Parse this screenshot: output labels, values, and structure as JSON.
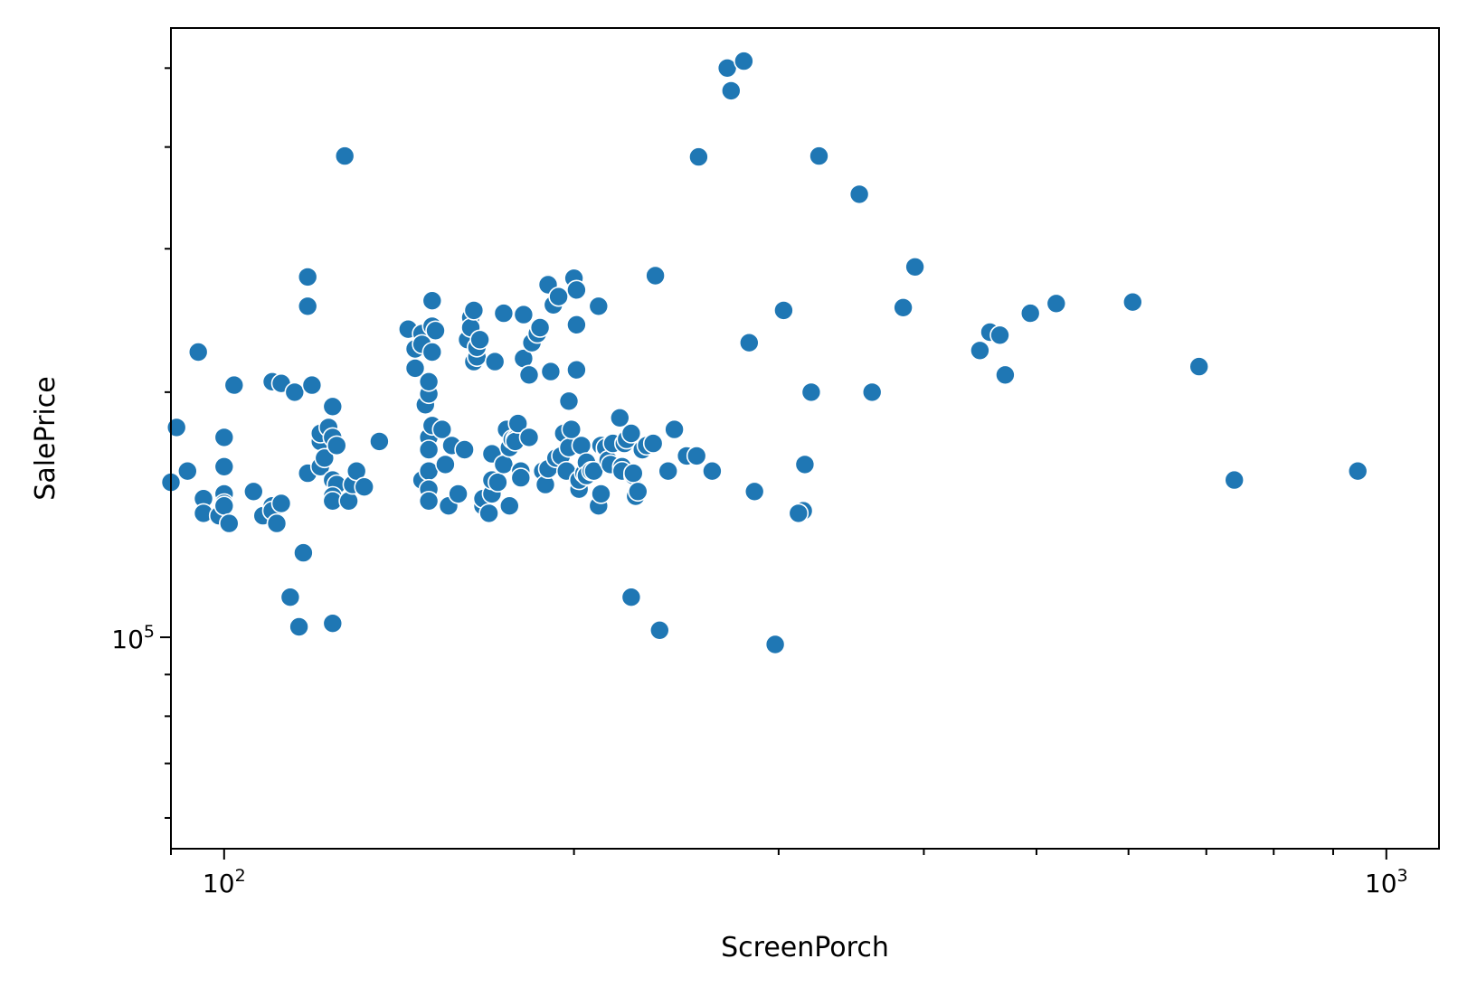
{
  "chart_data": {
    "type": "scatter",
    "title": "",
    "xlabel": "ScreenPorch",
    "ylabel": "SalePrice",
    "xscale": "log",
    "yscale": "log",
    "xlim": [
      90,
      1110
    ],
    "ylim": [
      55000,
      560000
    ],
    "grid": false,
    "legend": "none",
    "marker_color": "#1f77b4",
    "marker_edge": "#ffffff",
    "x_ticks": [
      {
        "base": "10",
        "exp": "2",
        "value": 100
      },
      {
        "base": "10",
        "exp": "3",
        "value": 1000
      }
    ],
    "y_ticks": [
      {
        "base": "10",
        "exp": "5",
        "value": 100000
      }
    ],
    "points": [
      [
        95,
        224000
      ],
      [
        91,
        181000
      ],
      [
        93,
        160000
      ],
      [
        90,
        155000
      ],
      [
        96,
        148000
      ],
      [
        96,
        142000
      ],
      [
        100,
        176000
      ],
      [
        100,
        162000
      ],
      [
        100,
        150000
      ],
      [
        100,
        144000
      ],
      [
        99,
        141000
      ],
      [
        100,
        146000
      ],
      [
        100,
        145000
      ],
      [
        101,
        138000
      ],
      [
        102,
        204000
      ],
      [
        106,
        151000
      ],
      [
        110,
        206000
      ],
      [
        112,
        205000
      ],
      [
        108,
        141000
      ],
      [
        110,
        145000
      ],
      [
        110,
        143000
      ],
      [
        111,
        138000
      ],
      [
        112,
        146000
      ],
      [
        114,
        112000
      ],
      [
        115,
        200000
      ],
      [
        116,
        103000
      ],
      [
        117,
        127000
      ],
      [
        118,
        277000
      ],
      [
        118,
        255000
      ],
      [
        118,
        159000
      ],
      [
        119,
        204000
      ],
      [
        121,
        174000
      ],
      [
        121,
        178000
      ],
      [
        121,
        162000
      ],
      [
        122,
        166000
      ],
      [
        123,
        181000
      ],
      [
        124,
        176000
      ],
      [
        124,
        192000
      ],
      [
        124,
        156000
      ],
      [
        125,
        154000
      ],
      [
        124,
        149000
      ],
      [
        124,
        147000
      ],
      [
        124,
        104000
      ],
      [
        125,
        172000
      ],
      [
        127,
        390000
      ],
      [
        128,
        147000
      ],
      [
        129,
        154000
      ],
      [
        130,
        160000
      ],
      [
        132,
        153000
      ],
      [
        136,
        174000
      ],
      [
        144,
        239000
      ],
      [
        146,
        214000
      ],
      [
        146,
        226000
      ],
      [
        148,
        236000
      ],
      [
        148,
        229000
      ],
      [
        148,
        156000
      ],
      [
        149,
        193000
      ],
      [
        150,
        199000
      ],
      [
        150,
        206000
      ],
      [
        150,
        176000
      ],
      [
        150,
        170000
      ],
      [
        150,
        160000
      ],
      [
        150,
        152000
      ],
      [
        150,
        147000
      ],
      [
        151,
        259000
      ],
      [
        151,
        241000
      ],
      [
        151,
        182000
      ],
      [
        151,
        224000
      ],
      [
        152,
        238000
      ],
      [
        154,
        180000
      ],
      [
        155,
        163000
      ],
      [
        156,
        145000
      ],
      [
        157,
        172000
      ],
      [
        159,
        150000
      ],
      [
        161,
        170000
      ],
      [
        162,
        232000
      ],
      [
        163,
        247000
      ],
      [
        163,
        240000
      ],
      [
        164,
        218000
      ],
      [
        164,
        252000
      ],
      [
        165,
        221000
      ],
      [
        165,
        227000
      ],
      [
        166,
        232000
      ],
      [
        167,
        145000
      ],
      [
        167,
        148000
      ],
      [
        169,
        142000
      ],
      [
        170,
        150000
      ],
      [
        170,
        168000
      ],
      [
        170,
        156000
      ],
      [
        171,
        218000
      ],
      [
        172,
        155000
      ],
      [
        174,
        250000
      ],
      [
        174,
        163000
      ],
      [
        175,
        180000
      ],
      [
        176,
        171000
      ],
      [
        176,
        145000
      ],
      [
        177,
        175000
      ],
      [
        178,
        175000
      ],
      [
        178,
        174000
      ],
      [
        179,
        183000
      ],
      [
        180,
        160000
      ],
      [
        180,
        160000
      ],
      [
        180,
        157000
      ],
      [
        181,
        249000
      ],
      [
        181,
        220000
      ],
      [
        183,
        210000
      ],
      [
        183,
        176000
      ],
      [
        184,
        230000
      ],
      [
        186,
        236000
      ],
      [
        187,
        240000
      ],
      [
        188,
        160000
      ],
      [
        189,
        154000
      ],
      [
        190,
        161000
      ],
      [
        190,
        272000
      ],
      [
        190,
        271000
      ],
      [
        191,
        212000
      ],
      [
        192,
        256000
      ],
      [
        193,
        166000
      ],
      [
        194,
        262000
      ],
      [
        195,
        167000
      ],
      [
        196,
        178000
      ],
      [
        197,
        160000
      ],
      [
        198,
        171000
      ],
      [
        198,
        195000
      ],
      [
        199,
        180000
      ],
      [
        200,
        276000
      ],
      [
        201,
        267000
      ],
      [
        201,
        242000
      ],
      [
        201,
        213000
      ],
      [
        202,
        152000
      ],
      [
        202,
        156000
      ],
      [
        203,
        172000
      ],
      [
        204,
        159000
      ],
      [
        205,
        164000
      ],
      [
        205,
        158000
      ],
      [
        207,
        160000
      ],
      [
        208,
        160000
      ],
      [
        210,
        255000
      ],
      [
        210,
        145000
      ],
      [
        211,
        150000
      ],
      [
        211,
        172000
      ],
      [
        213,
        170000
      ],
      [
        213,
        171000
      ],
      [
        214,
        165000
      ],
      [
        215,
        163000
      ],
      [
        216,
        173000
      ],
      [
        219,
        186000
      ],
      [
        220,
        162000
      ],
      [
        220,
        160000
      ],
      [
        221,
        173000
      ],
      [
        222,
        175000
      ],
      [
        224,
        112000
      ],
      [
        224,
        178000
      ],
      [
        225,
        158000
      ],
      [
        225,
        159000
      ],
      [
        226,
        149000
      ],
      [
        227,
        151000
      ],
      [
        229,
        170000
      ],
      [
        231,
        172000
      ],
      [
        234,
        173000
      ],
      [
        235,
        278000
      ],
      [
        237,
        102000
      ],
      [
        241,
        160000
      ],
      [
        244,
        180000
      ],
      [
        250,
        167000
      ],
      [
        255,
        167000
      ],
      [
        256,
        389000
      ],
      [
        263,
        160000
      ],
      [
        271,
        500000
      ],
      [
        273,
        469000
      ],
      [
        280,
        510000
      ],
      [
        283,
        230000
      ],
      [
        286,
        151000
      ],
      [
        298,
        98000
      ],
      [
        303,
        252000
      ],
      [
        315,
        143000
      ],
      [
        312,
        142000
      ],
      [
        316,
        163000
      ],
      [
        320,
        200000
      ],
      [
        325,
        390000
      ],
      [
        352,
        350000
      ],
      [
        361,
        200000
      ],
      [
        384,
        254000
      ],
      [
        393,
        285000
      ],
      [
        447,
        225000
      ],
      [
        456,
        237000
      ],
      [
        465,
        235000
      ],
      [
        470,
        210000
      ],
      [
        494,
        250000
      ],
      [
        520,
        257000
      ],
      [
        605,
        258000
      ],
      [
        690,
        215000
      ],
      [
        740,
        156000
      ],
      [
        945,
        160000
      ]
    ]
  }
}
